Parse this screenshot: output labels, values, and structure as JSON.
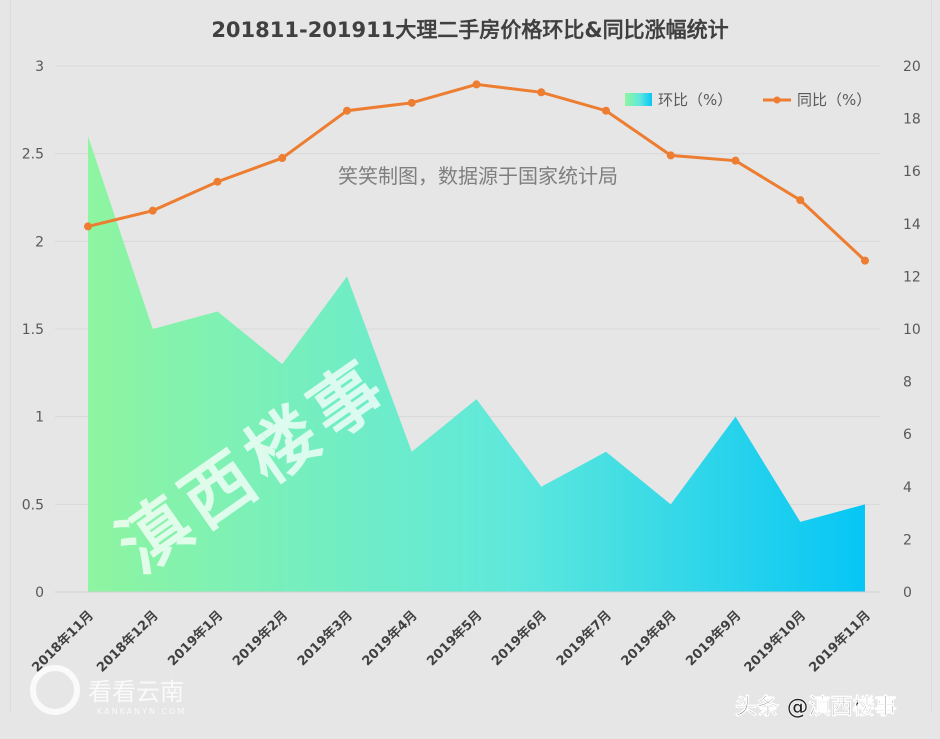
{
  "chart_data": {
    "type": "area+line",
    "title": "201811-201911大理二手房价格环比&同比涨幅统计",
    "subtitle": "笑笑制图，数据源于国家统计局",
    "categories": [
      "2018年11月",
      "2018年12月",
      "2019年1月",
      "2019年2月",
      "2019年3月",
      "2019年4月",
      "2019年5月",
      "2019年6月",
      "2019年7月",
      "2019年8月",
      "2019年9月",
      "2019年10月",
      "2019年11月"
    ],
    "series": [
      {
        "name": "环比（%）",
        "type": "area",
        "axis": "left",
        "values": [
          2.6,
          1.5,
          1.6,
          1.3,
          1.8,
          0.8,
          1.1,
          0.6,
          0.8,
          0.5,
          1.0,
          0.4,
          0.5
        ],
        "gradient": [
          "#8ef5a0",
          "#06c6f5"
        ]
      },
      {
        "name": "同比（%）",
        "type": "line",
        "axis": "right",
        "values": [
          13.9,
          14.5,
          15.6,
          16.5,
          18.3,
          18.6,
          19.3,
          19.0,
          18.3,
          16.6,
          16.4,
          14.9,
          12.6
        ],
        "color": "#ed7d31"
      }
    ],
    "left_axis": {
      "ticks": [
        "0",
        "0.5",
        "1",
        "1.5",
        "2",
        "2.5",
        "3"
      ],
      "ylim": [
        0,
        3
      ]
    },
    "right_axis": {
      "ticks": [
        "0",
        "2",
        "4",
        "6",
        "8",
        "10",
        "12",
        "14",
        "16",
        "18",
        "20"
      ],
      "ylim": [
        0,
        20
      ]
    },
    "grid": true,
    "legend_position": "top-right"
  },
  "watermarks": {
    "center": "滇西楼事",
    "bottom_left_cn": "看看云南",
    "bottom_left_en": "KANKANYN.COM",
    "bottom_right": "头条 @滇西楼事"
  }
}
